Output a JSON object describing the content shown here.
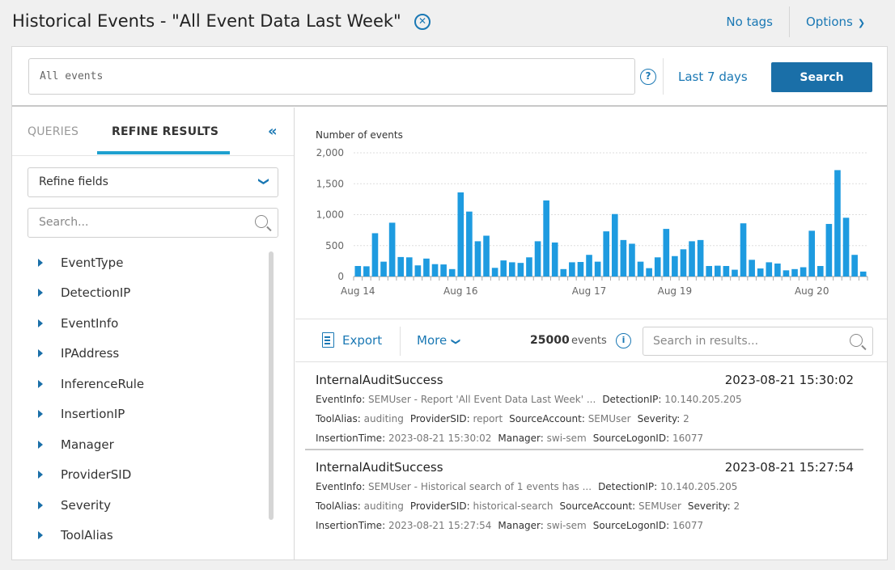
{
  "header": {
    "title": "Historical Events - \"All Event Data Last Week\"",
    "tags_label": "No tags",
    "options_label": "Options"
  },
  "search": {
    "query_value": "All events",
    "help_glyph": "?",
    "time_range": "Last 7 days",
    "search_button": "Search"
  },
  "left": {
    "tabs": [
      {
        "label": "QUERIES",
        "active": false
      },
      {
        "label": "REFINE RESULTS",
        "active": true
      }
    ],
    "collapse_glyph": "«",
    "refine_select": "Refine fields",
    "field_search_placeholder": "Search...",
    "fields": [
      "EventType",
      "DetectionIP",
      "EventInfo",
      "IPAddress",
      "InferenceRule",
      "InsertionIP",
      "Manager",
      "ProviderSID",
      "Severity",
      "ToolAlias"
    ]
  },
  "chart_data": {
    "type": "bar",
    "title": "Number of events",
    "ylim": [
      0,
      2000
    ],
    "yticks": [
      "0",
      "500",
      "1,000",
      "1,500",
      "2,000"
    ],
    "ytick_values": [
      0,
      500,
      1000,
      1500,
      2000
    ],
    "grid": true,
    "xtick_labels": [
      {
        "label": "Aug 14",
        "index": 0
      },
      {
        "label": "Aug 16",
        "index": 12
      },
      {
        "label": "Aug 17",
        "index": 27
      },
      {
        "label": "Aug 19",
        "index": 37
      },
      {
        "label": "Aug 20",
        "index": 53
      }
    ],
    "values": [
      170,
      165,
      700,
      240,
      870,
      315,
      310,
      180,
      290,
      200,
      195,
      120,
      1360,
      1050,
      570,
      660,
      140,
      260,
      230,
      220,
      310,
      570,
      1230,
      550,
      120,
      230,
      235,
      350,
      240,
      730,
      1010,
      590,
      530,
      240,
      135,
      310,
      770,
      330,
      440,
      570,
      590,
      170,
      175,
      170,
      110,
      860,
      270,
      130,
      230,
      210,
      100,
      120,
      150,
      740,
      170,
      850,
      1720,
      950,
      350,
      80
    ],
    "bar_color": "#1e9be0"
  },
  "toolbar": {
    "export_label": "Export",
    "more_label": "More",
    "event_count": "25000",
    "event_count_unit": "events",
    "info_glyph": "i",
    "results_search_placeholder": "Search in results..."
  },
  "events": [
    {
      "type": "InternalAuditSuccess",
      "time": "2023-08-21 15:30:02",
      "lines": [
        [
          [
            "EventInfo:",
            "SEMUser - Report 'All Event Data Last Week' ..."
          ],
          [
            "DetectionIP:",
            "10.140.205.205"
          ]
        ],
        [
          [
            "ToolAlias:",
            "auditing"
          ],
          [
            "ProviderSID:",
            "report"
          ],
          [
            "SourceAccount:",
            "SEMUser"
          ],
          [
            "Severity:",
            "2"
          ]
        ],
        [
          [
            "InsertionTime:",
            "2023-08-21 15:30:02"
          ],
          [
            "Manager:",
            "swi-sem"
          ],
          [
            "SourceLogonID:",
            "16077"
          ]
        ]
      ]
    },
    {
      "type": "InternalAuditSuccess",
      "time": "2023-08-21 15:27:54",
      "lines": [
        [
          [
            "EventInfo:",
            "SEMUser - Historical search of 1 events has ..."
          ],
          [
            "DetectionIP:",
            "10.140.205.205"
          ]
        ],
        [
          [
            "ToolAlias:",
            "auditing"
          ],
          [
            "ProviderSID:",
            "historical-search"
          ],
          [
            "SourceAccount:",
            "SEMUser"
          ],
          [
            "Severity:",
            "2"
          ]
        ],
        [
          [
            "InsertionTime:",
            "2023-08-21 15:27:54"
          ],
          [
            "Manager:",
            "swi-sem"
          ],
          [
            "SourceLogonID:",
            "16077"
          ]
        ]
      ]
    }
  ],
  "colors": {
    "accent": "#1a78b4",
    "primary_button": "#1a6fa8",
    "tab_underline": "#1ea0cf"
  }
}
